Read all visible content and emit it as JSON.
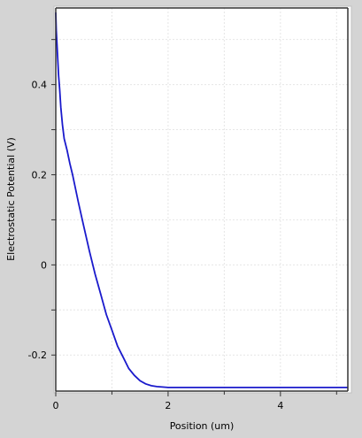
{
  "chart_data": {
    "type": "line",
    "title": "",
    "xlabel": "Position (um)",
    "ylabel": "Electrostatic Potential (V)",
    "xlim": [
      0,
      5.2
    ],
    "ylim": [
      -0.28,
      0.57
    ],
    "xticks": [
      0,
      2,
      4
    ],
    "xtick_labels": [
      "0",
      "2",
      "4"
    ],
    "yticks": [
      -0.2,
      0,
      0.2,
      0.4
    ],
    "ytick_labels": [
      "-0.2",
      "0",
      "0.2",
      "0.4"
    ],
    "grid": true,
    "series": [
      {
        "color": "#1a1acc",
        "x": [
          0.0,
          0.01,
          0.03,
          0.05,
          0.07,
          0.09,
          0.12,
          0.15,
          0.2,
          0.25,
          0.3,
          0.4,
          0.5,
          0.6,
          0.7,
          0.8,
          0.9,
          1.0,
          1.1,
          1.2,
          1.3,
          1.4,
          1.5,
          1.6,
          1.7,
          1.8,
          1.9,
          2.0,
          2.5,
          3.0,
          3.5,
          4.0,
          4.5,
          5.0,
          5.2
        ],
        "y": [
          0.56,
          0.52,
          0.47,
          0.42,
          0.39,
          0.35,
          0.31,
          0.28,
          0.255,
          0.225,
          0.2,
          0.14,
          0.085,
          0.03,
          -0.02,
          -0.065,
          -0.11,
          -0.145,
          -0.18,
          -0.205,
          -0.23,
          -0.245,
          -0.257,
          -0.264,
          -0.268,
          -0.27,
          -0.271,
          -0.272,
          -0.272,
          -0.272,
          -0.272,
          -0.272,
          -0.272,
          -0.272,
          -0.272
        ]
      }
    ]
  }
}
